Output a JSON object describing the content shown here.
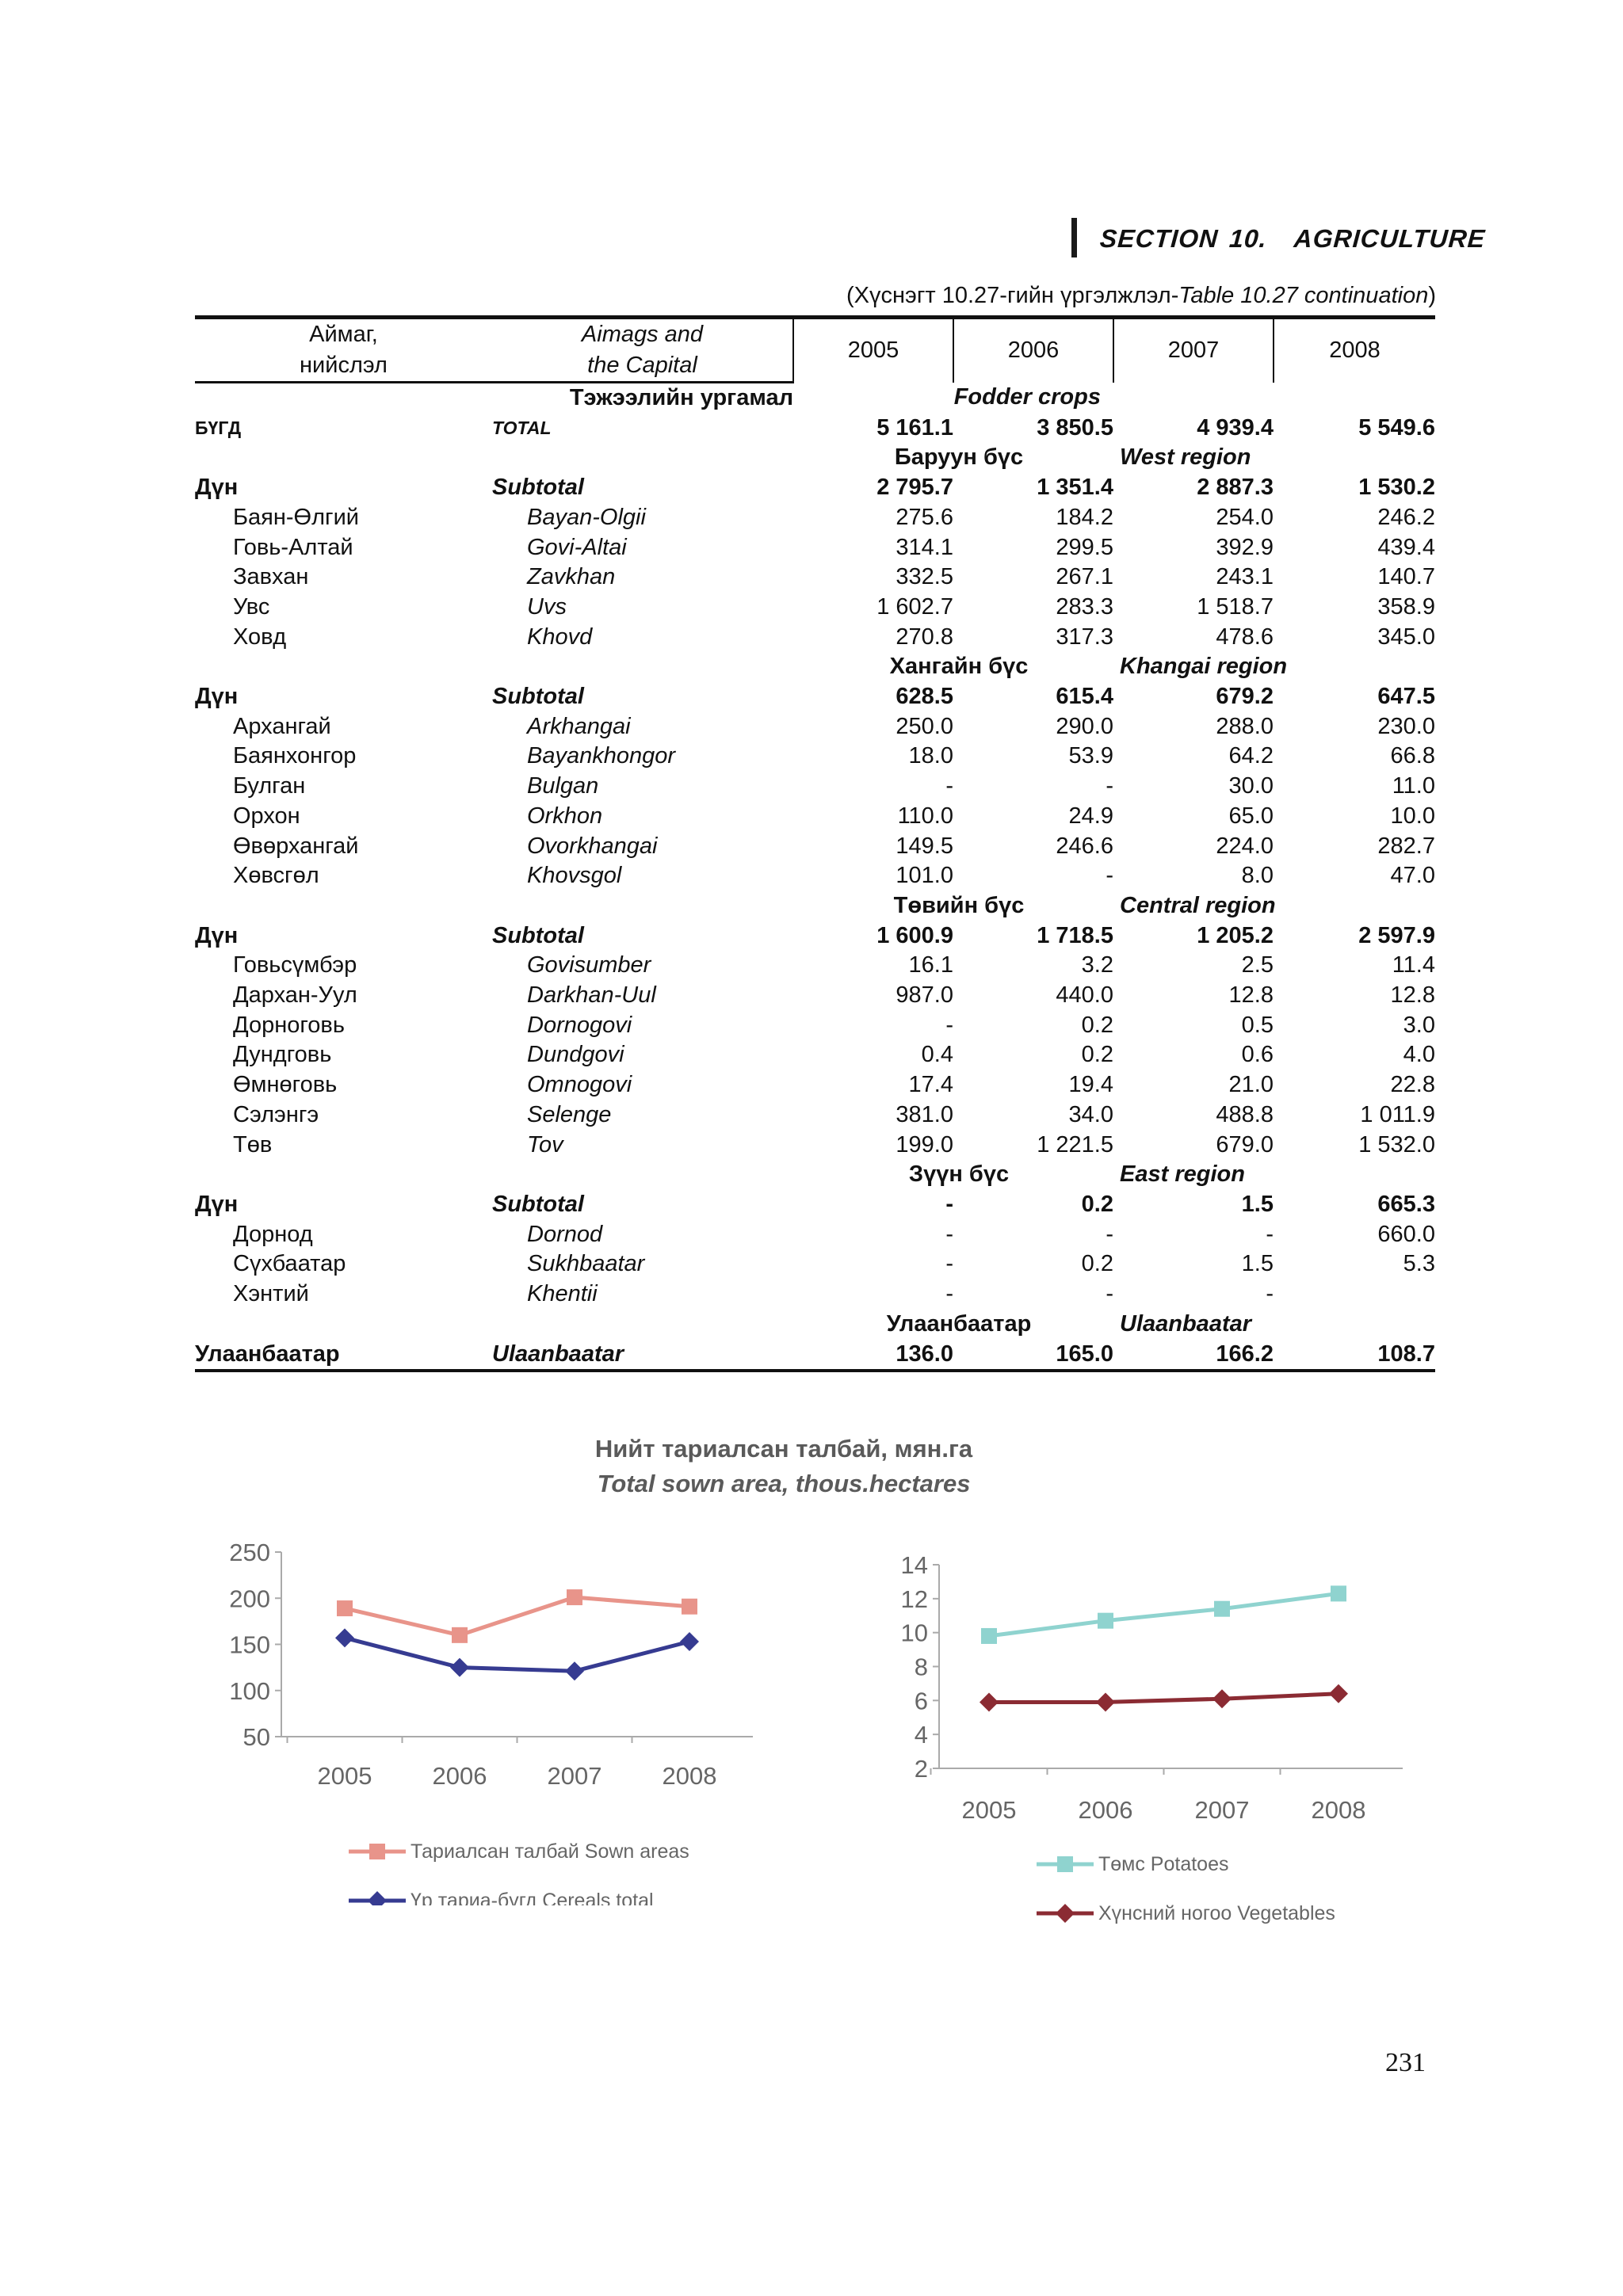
{
  "header": {
    "section_label": "SECTION",
    "section_number": "10.",
    "section_title": "AGRICULTURE",
    "continuation_mn": "(Хүснэгт 10.27-гийн үргэлжлэл-",
    "continuation_en": "Table 10.27 continuation",
    "continuation_close": ")"
  },
  "table": {
    "col_mn_1": "Аймаг,",
    "col_mn_2": "нийслэл",
    "col_en_1": "Aimags and",
    "col_en_2": "the Capital",
    "years": [
      "2005",
      "2006",
      "2007",
      "2008"
    ],
    "crop_mn": "Тэжээлийн ургамал",
    "crop_en": "Fodder crops",
    "total": {
      "mn": "БҮГД",
      "en": "TOTAL",
      "values": [
        "5 161.1",
        "3 850.5",
        "4 939.4",
        "5 549.6"
      ]
    },
    "regions": [
      {
        "mn": "Баруун бүс",
        "en": "West region",
        "subtotal": {
          "mn": "Дүн",
          "en": "Subtotal",
          "values": [
            "2 795.7",
            "1 351.4",
            "2 887.3",
            "1 530.2"
          ]
        },
        "rows": [
          {
            "mn": "Баян-Өлгий",
            "en": "Bayan-Olgii",
            "values": [
              "275.6",
              "184.2",
              "254.0",
              "246.2"
            ]
          },
          {
            "mn": "Говь-Алтай",
            "en": "Govi-Altai",
            "values": [
              "314.1",
              "299.5",
              "392.9",
              "439.4"
            ]
          },
          {
            "mn": "Завхан",
            "en": "Zavkhan",
            "values": [
              "332.5",
              "267.1",
              "243.1",
              "140.7"
            ]
          },
          {
            "mn": "Увс",
            "en": "Uvs",
            "values": [
              "1 602.7",
              "283.3",
              "1 518.7",
              "358.9"
            ]
          },
          {
            "mn": "Ховд",
            "en": "Khovd",
            "values": [
              "270.8",
              "317.3",
              "478.6",
              "345.0"
            ]
          }
        ]
      },
      {
        "mn": "Хангайн бүс",
        "en": "Khangai region",
        "subtotal": {
          "mn": "Дүн",
          "en": "Subtotal",
          "values": [
            "628.5",
            "615.4",
            "679.2",
            "647.5"
          ]
        },
        "rows": [
          {
            "mn": "Архангай",
            "en": "Arkhangai",
            "values": [
              "250.0",
              "290.0",
              "288.0",
              "230.0"
            ]
          },
          {
            "mn": "Баянхонгор",
            "en": "Bayankhongor",
            "values": [
              "18.0",
              "53.9",
              "64.2",
              "66.8"
            ]
          },
          {
            "mn": "Булган",
            "en": "Bulgan",
            "values": [
              "-",
              "-",
              "30.0",
              "11.0"
            ]
          },
          {
            "mn": "Орхон",
            "en": "Orkhon",
            "values": [
              "110.0",
              "24.9",
              "65.0",
              "10.0"
            ]
          },
          {
            "mn": "Өвөрхангай",
            "en": "Ovorkhangai",
            "values": [
              "149.5",
              "246.6",
              "224.0",
              "282.7"
            ]
          },
          {
            "mn": "Хөвсгөл",
            "en": "Khovsgol",
            "values": [
              "101.0",
              "-",
              "8.0",
              "47.0"
            ]
          }
        ]
      },
      {
        "mn": "Төвийн бүс",
        "en": "Central region",
        "subtotal": {
          "mn": "Дүн",
          "en": "Subtotal",
          "values": [
            "1 600.9",
            "1 718.5",
            "1 205.2",
            "2 597.9"
          ]
        },
        "rows": [
          {
            "mn": "Говьсүмбэр",
            "en": "Govisumber",
            "values": [
              "16.1",
              "3.2",
              "2.5",
              "11.4"
            ]
          },
          {
            "mn": "Дархан-Уул",
            "en": "Darkhan-Uul",
            "values": [
              "987.0",
              "440.0",
              "12.8",
              "12.8"
            ]
          },
          {
            "mn": "Дорноговь",
            "en": "Dornogovi",
            "values": [
              "-",
              "0.2",
              "0.5",
              "3.0"
            ]
          },
          {
            "mn": "Дундговь",
            "en": "Dundgovi",
            "values": [
              "0.4",
              "0.2",
              "0.6",
              "4.0"
            ]
          },
          {
            "mn": "Өмнөговь",
            "en": "Omnogovi",
            "values": [
              "17.4",
              "19.4",
              "21.0",
              "22.8"
            ]
          },
          {
            "mn": "Сэлэнгэ",
            "en": "Selenge",
            "values": [
              "381.0",
              "34.0",
              "488.8",
              "1 011.9"
            ]
          },
          {
            "mn": "Төв",
            "en": "Tov",
            "values": [
              "199.0",
              "1 221.5",
              "679.0",
              "1 532.0"
            ]
          }
        ]
      },
      {
        "mn": "Зүүн бүс",
        "en": "East region",
        "subtotal": {
          "mn": "Дүн",
          "en": "Subtotal",
          "values": [
            "-",
            "0.2",
            "1.5",
            "665.3"
          ]
        },
        "rows": [
          {
            "mn": "Дорнод",
            "en": "Dornod",
            "values": [
              "-",
              "-",
              "-",
              "660.0"
            ]
          },
          {
            "mn": "Сүхбаатар",
            "en": "Sukhbaatar",
            "values": [
              "-",
              "0.2",
              "1.5",
              "5.3"
            ]
          },
          {
            "mn": "Хэнтий",
            "en": "Khentii",
            "values": [
              "-",
              "-",
              "-",
              ""
            ]
          }
        ]
      }
    ],
    "capital": {
      "mn": "Улаанбаатар",
      "en": "Ulaanbaatar",
      "row": {
        "mn": "Улаанбаатар",
        "en": "Ulaanbaatar",
        "values": [
          "136.0",
          "165.0",
          "166.2",
          "108.7"
        ]
      }
    }
  },
  "charts_title": {
    "mn": "Нийт тариалсан талбай, мян.га",
    "en": "Total sown area, thous.hectares"
  },
  "chart_data": [
    {
      "type": "line",
      "x": [
        "2005",
        "2006",
        "2007",
        "2008"
      ],
      "ylim": [
        50,
        250
      ],
      "yticks": [
        "50",
        "100",
        "150",
        "200",
        "250"
      ],
      "series": [
        {
          "name": "Тариалсан талбай Sown areas",
          "values": [
            189,
            160,
            201,
            191
          ],
          "color": "#e8948a"
        },
        {
          "name": "Үр тариа-бүгд Cereals total",
          "values": [
            157,
            125,
            121,
            153
          ],
          "color": "#363b91"
        }
      ],
      "legend": "bottom"
    },
    {
      "type": "line",
      "x": [
        "2005",
        "2006",
        "2007",
        "2008"
      ],
      "ylim": [
        2,
        14
      ],
      "yticks": [
        "2",
        "4",
        "6",
        "8",
        "10",
        "12",
        "14"
      ],
      "series": [
        {
          "name": "Төмс     Potatoes",
          "values": [
            9.8,
            10.7,
            11.4,
            12.3
          ],
          "color": "#8fd3cf"
        },
        {
          "name": "Хүнсний ногоо Vegetables",
          "values": [
            5.9,
            5.9,
            6.1,
            6.4
          ],
          "color": "#8b2b33"
        }
      ],
      "legend": "bottom"
    }
  ],
  "page_number": "231"
}
